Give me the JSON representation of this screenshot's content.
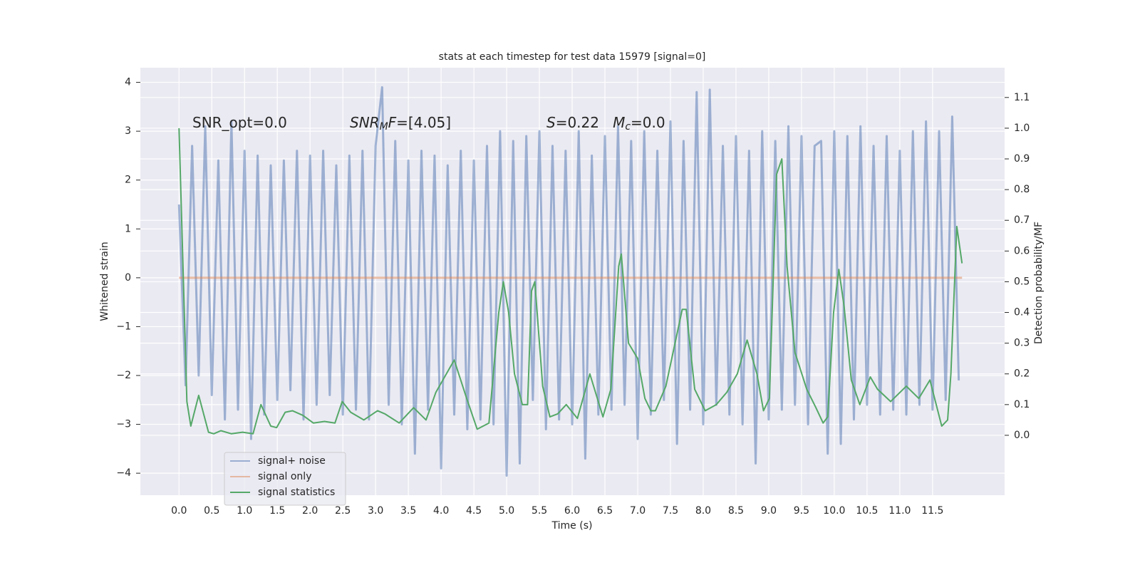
{
  "chart_data": {
    "type": "line",
    "title": "stats at each timestep for test data 15979 [signal=0]",
    "xlabel": "Time (s)",
    "ylabel": "Whitened strain",
    "y2label": "Detection probability/MF",
    "annotations": [
      [
        "SNR_opt=0.0"
      ],
      [
        "SNR",
        "M",
        "F",
        "=[4.05]"
      ],
      [
        "S",
        "=0.22   ",
        "M",
        "c",
        "=0.0"
      ]
    ],
    "xlim": [
      -0.59,
      12.6
    ],
    "ylim": [
      -4.45,
      4.3
    ],
    "y2lim": [
      -0.195,
      1.197
    ],
    "xticks": [
      {
        "value": 0,
        "label": "0.0"
      },
      0.5,
      {
        "value": 1,
        "label": "1.0"
      },
      1.5,
      {
        "value": 2,
        "label": "2.0"
      },
      2.5,
      {
        "value": 3,
        "label": "3.0"
      },
      3.5,
      {
        "value": 4,
        "label": "4.0"
      },
      4.5,
      {
        "value": 5,
        "label": "5.0"
      },
      5.5,
      {
        "value": 6,
        "label": "6.0"
      },
      6.5,
      {
        "value": 7,
        "label": "7.0"
      },
      7.5,
      {
        "value": 8,
        "label": "8.0"
      },
      8.5,
      {
        "value": 9,
        "label": "9.0"
      },
      9.5,
      {
        "value": 10,
        "label": "10.0"
      },
      10.5,
      {
        "value": 11,
        "label": "11.0"
      },
      11.5
    ],
    "yticks": [
      {
        "value": -4,
        "label": "−4"
      },
      {
        "value": -3,
        "label": "−3"
      },
      {
        "value": -2,
        "label": "−2"
      },
      {
        "value": -1,
        "label": "−1"
      },
      0,
      1,
      2,
      3,
      4
    ],
    "y2ticks": [
      {
        "value": 0,
        "label": "0.0"
      },
      0.1,
      0.2,
      0.3,
      0.4,
      0.5,
      0.6,
      0.7,
      0.8,
      0.9,
      {
        "value": 1,
        "label": "1.0"
      },
      1.1
    ],
    "grid": true,
    "legend": "lower left",
    "series": [
      {
        "name": "signal+ noise",
        "color": "#4c72b0",
        "alpha": 0.5,
        "x": [
          0.0,
          0.1,
          0.2,
          0.3,
          0.4,
          0.5,
          0.6,
          0.7,
          0.8,
          0.9,
          1.0,
          1.1,
          1.2,
          1.3,
          1.4,
          1.5,
          1.6,
          1.7,
          1.8,
          1.9,
          2.0,
          2.1,
          2.2,
          2.3,
          2.4,
          2.5,
          2.6,
          2.7,
          2.8,
          2.9,
          3.0,
          3.1,
          3.2,
          3.3,
          3.4,
          3.5,
          3.6,
          3.7,
          3.8,
          3.9,
          4.0,
          4.1,
          4.2,
          4.3,
          4.4,
          4.5,
          4.6,
          4.7,
          4.8,
          4.9,
          5.0,
          5.1,
          5.2,
          5.3,
          5.4,
          5.5,
          5.6,
          5.7,
          5.8,
          5.9,
          6.0,
          6.1,
          6.2,
          6.3,
          6.4,
          6.5,
          6.6,
          6.7,
          6.8,
          6.9,
          7.0,
          7.1,
          7.2,
          7.3,
          7.4,
          7.5,
          7.6,
          7.7,
          7.8,
          7.9,
          8.0,
          8.1,
          8.2,
          8.3,
          8.4,
          8.5,
          8.6,
          8.7,
          8.8,
          8.9,
          9.0,
          9.1,
          9.2,
          9.3,
          9.4,
          9.5,
          9.6,
          9.7,
          9.8,
          9.9,
          10.0,
          10.1,
          10.2,
          10.3,
          10.4,
          10.5,
          10.6,
          10.7,
          10.8,
          10.9,
          11.0,
          11.1,
          11.2,
          11.3,
          11.4,
          11.5,
          11.6,
          11.7,
          11.8,
          11.9
        ],
        "values": [
          1.5,
          -2.2,
          2.7,
          -2.0,
          3.1,
          -2.4,
          2.4,
          -2.9,
          3.2,
          -2.7,
          2.6,
          -3.3,
          2.5,
          -2.8,
          2.3,
          -2.5,
          2.4,
          -2.3,
          2.6,
          -2.9,
          2.5,
          -2.6,
          2.6,
          -2.4,
          2.3,
          -2.8,
          2.5,
          -2.7,
          2.6,
          -2.9,
          2.7,
          3.9,
          -2.6,
          2.8,
          -3.0,
          2.4,
          -3.6,
          2.6,
          -2.7,
          2.5,
          -3.9,
          2.3,
          -2.8,
          2.6,
          -3.1,
          2.4,
          -2.9,
          2.7,
          -3.0,
          3.0,
          -4.05,
          2.8,
          -3.8,
          2.9,
          -2.5,
          3.0,
          -3.1,
          2.7,
          -2.9,
          2.6,
          -3.0,
          3.0,
          -3.7,
          2.5,
          -2.8,
          2.9,
          -2.7,
          3.1,
          -2.6,
          2.8,
          -3.3,
          3.0,
          -2.8,
          2.6,
          -2.5,
          3.2,
          -3.4,
          2.8,
          -2.7,
          3.8,
          -3.0,
          3.85,
          -2.6,
          2.7,
          -2.8,
          2.9,
          -3.0,
          2.6,
          -3.8,
          3.0,
          -2.9,
          2.8,
          -2.7,
          3.1,
          -2.6,
          2.9,
          -3.0,
          2.7,
          2.8,
          -3.6,
          3.0,
          -3.4,
          2.9,
          -2.9,
          3.1,
          -2.6,
          2.7,
          -2.8,
          2.9,
          -2.7,
          2.6,
          -2.8,
          3.0,
          -2.6,
          3.2,
          -2.7,
          3.0,
          -2.5,
          3.3,
          -2.1
        ]
      },
      {
        "name": "signal only",
        "color": "#dd8452",
        "alpha": 0.5,
        "x": [
          0.0,
          11.95
        ],
        "values": [
          0,
          0
        ]
      },
      {
        "name": "signal statistics",
        "color": "#55a868",
        "axis": "y2",
        "x": [
          0,
          0.12,
          0.18,
          0.3,
          0.45,
          0.53,
          0.64,
          0.8,
          0.97,
          1.13,
          1.25,
          1.4,
          1.49,
          1.62,
          1.73,
          1.89,
          2.05,
          2.22,
          2.38,
          2.49,
          2.62,
          2.82,
          3.03,
          3.14,
          3.36,
          3.58,
          3.77,
          3.92,
          4.2,
          4.39,
          4.55,
          4.73,
          4.88,
          4.95,
          5.03,
          5.12,
          5.24,
          5.32,
          5.38,
          5.43,
          5.55,
          5.66,
          5.78,
          5.91,
          6.08,
          6.27,
          6.47,
          6.59,
          6.71,
          6.75,
          6.86,
          7.0,
          7.11,
          7.2,
          7.27,
          7.43,
          7.57,
          7.68,
          7.74,
          7.87,
          8.03,
          8.2,
          8.36,
          8.52,
          8.67,
          8.82,
          8.92,
          9.01,
          9.12,
          9.2,
          9.28,
          9.4,
          9.58,
          9.72,
          9.83,
          9.9,
          9.99,
          10.07,
          10.15,
          10.26,
          10.39,
          10.55,
          10.66,
          10.86,
          11.1,
          11.29,
          11.46,
          11.64,
          11.73,
          11.78,
          11.87,
          11.95
        ],
        "values": [
          1.0,
          0.11,
          0.03,
          0.13,
          0.01,
          0.005,
          0.015,
          0.005,
          0.01,
          0.005,
          0.1,
          0.03,
          0.025,
          0.075,
          0.08,
          0.065,
          0.04,
          0.045,
          0.04,
          0.11,
          0.075,
          0.05,
          0.08,
          0.07,
          0.04,
          0.09,
          0.05,
          0.14,
          0.245,
          0.12,
          0.02,
          0.04,
          0.4,
          0.5,
          0.4,
          0.2,
          0.1,
          0.1,
          0.47,
          0.5,
          0.16,
          0.06,
          0.07,
          0.1,
          0.055,
          0.2,
          0.06,
          0.15,
          0.55,
          0.59,
          0.3,
          0.25,
          0.12,
          0.08,
          0.08,
          0.16,
          0.3,
          0.41,
          0.41,
          0.15,
          0.08,
          0.1,
          0.14,
          0.2,
          0.31,
          0.2,
          0.08,
          0.12,
          0.85,
          0.9,
          0.55,
          0.27,
          0.15,
          0.09,
          0.04,
          0.06,
          0.4,
          0.54,
          0.42,
          0.18,
          0.1,
          0.19,
          0.15,
          0.11,
          0.16,
          0.12,
          0.18,
          0.03,
          0.05,
          0.2,
          0.68,
          0.56
        ]
      }
    ]
  }
}
